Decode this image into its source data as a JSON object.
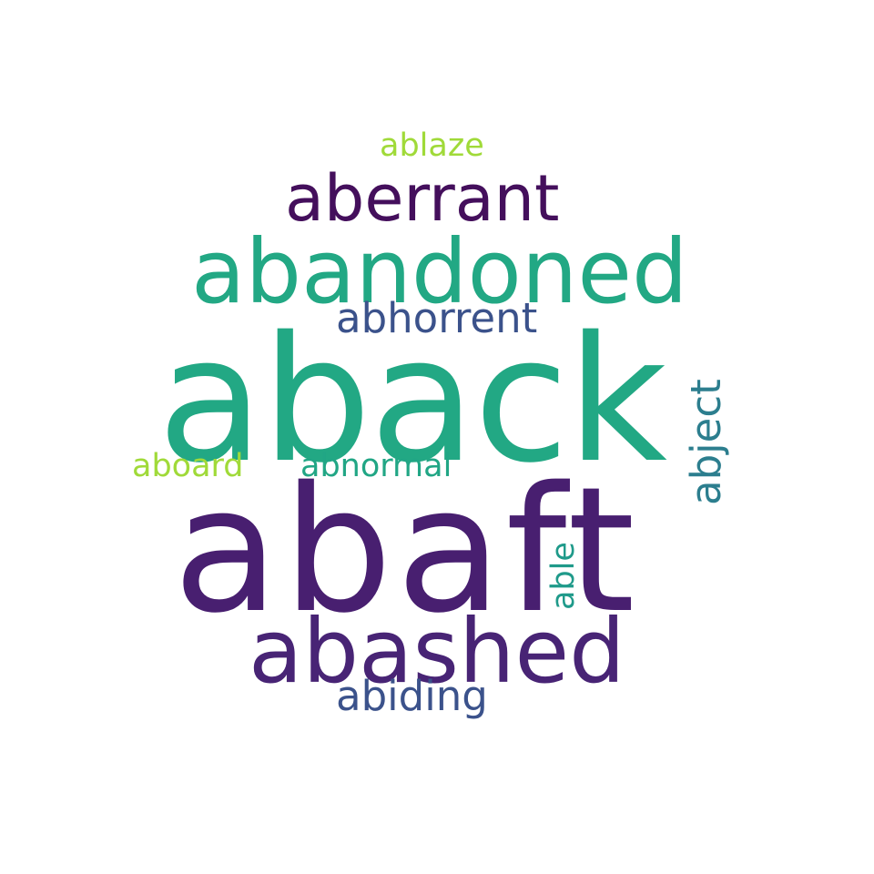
{
  "words": [
    {
      "id": "aback",
      "text": "aback",
      "color": "#22a884",
      "orientation": "horizontal"
    },
    {
      "id": "abaft",
      "text": "abaft",
      "color": "#481f70",
      "orientation": "horizontal"
    },
    {
      "id": "abandoned",
      "text": "abandoned",
      "color": "#22a884",
      "orientation": "horizontal"
    },
    {
      "id": "abashed",
      "text": "abashed",
      "color": "#482475",
      "orientation": "horizontal"
    },
    {
      "id": "aberrant",
      "text": "aberrant",
      "color": "#440f5c",
      "orientation": "horizontal"
    },
    {
      "id": "abhorrent",
      "text": "abhorrent",
      "color": "#3b528b",
      "orientation": "horizontal"
    },
    {
      "id": "abiding",
      "text": "abiding",
      "color": "#3b528b",
      "orientation": "horizontal"
    },
    {
      "id": "ablaze",
      "text": "ablaze",
      "color": "#a0da39",
      "orientation": "horizontal"
    },
    {
      "id": "aboard",
      "text": "aboard",
      "color": "#a0da39",
      "orientation": "horizontal"
    },
    {
      "id": "abnormal",
      "text": "abnormal",
      "color": "#21a685",
      "orientation": "horizontal"
    },
    {
      "id": "abject",
      "text": "abject",
      "color": "#2c7e8e",
      "orientation": "vertical"
    },
    {
      "id": "able",
      "text": "able",
      "color": "#1f9a8a",
      "orientation": "vertical"
    }
  ]
}
